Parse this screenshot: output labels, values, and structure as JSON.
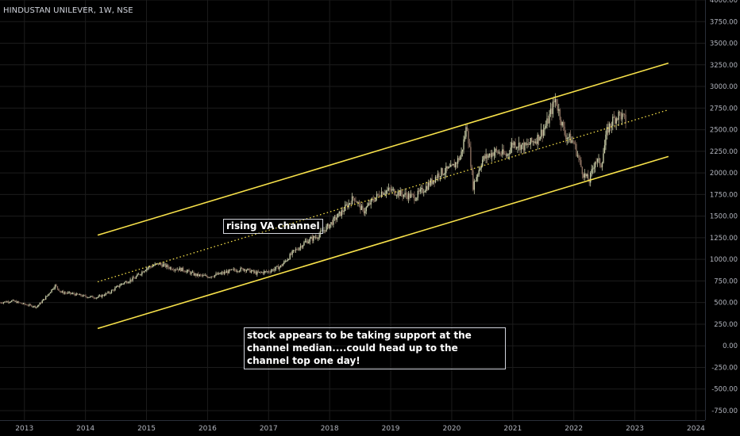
{
  "chart_title": "HINDUSTAN UNILEVER, 1W, NSE",
  "annotations": {
    "channel_label": "rising VA channel",
    "support_note": "stock appears to be taking support at the channel median....could head up to the channel top one day!"
  },
  "colors": {
    "background": "#000000",
    "channel_line": "#f7e14a",
    "median_line": "#f7e14a",
    "candle_up": "#c5c9a4",
    "candle_down": "#8b7060",
    "grid": "#1c1c1c",
    "axis_text": "#b2b5be"
  },
  "chart_data": {
    "type": "line",
    "title": "HINDUSTAN UNILEVER, 1W, NSE",
    "x_ticks": [
      "2013",
      "2014",
      "2015",
      "2016",
      "2017",
      "2018",
      "2019",
      "2020",
      "2021",
      "2022",
      "2023",
      "2024"
    ],
    "y_ticks": [
      "4000.00",
      "3750.00",
      "3500.00",
      "3250.00",
      "3000.00",
      "2750.00",
      "2500.00",
      "2250.00",
      "2000.00",
      "1750.00",
      "1500.00",
      "1250.00",
      "1000.00",
      "750.00",
      "500.00",
      "250.00",
      "0.00",
      "-250.00",
      "-500.00",
      "-750.00"
    ],
    "ylim": [
      -860,
      4000
    ],
    "xlim": [
      2012.6,
      2024.15
    ],
    "grid": true,
    "price_path": [
      [
        2012.6,
        500
      ],
      [
        2012.8,
        520
      ],
      [
        2013.0,
        480
      ],
      [
        2013.2,
        450
      ],
      [
        2013.35,
        560
      ],
      [
        2013.5,
        700
      ],
      [
        2013.6,
        620
      ],
      [
        2013.8,
        600
      ],
      [
        2014.0,
        570
      ],
      [
        2014.2,
        560
      ],
      [
        2014.4,
        620
      ],
      [
        2014.6,
        720
      ],
      [
        2014.8,
        780
      ],
      [
        2015.0,
        900
      ],
      [
        2015.2,
        950
      ],
      [
        2015.4,
        900
      ],
      [
        2015.6,
        880
      ],
      [
        2015.8,
        820
      ],
      [
        2016.0,
        800
      ],
      [
        2016.2,
        830
      ],
      [
        2016.4,
        870
      ],
      [
        2016.6,
        890
      ],
      [
        2016.8,
        840
      ],
      [
        2017.0,
        860
      ],
      [
        2017.2,
        920
      ],
      [
        2017.4,
        1080
      ],
      [
        2017.6,
        1200
      ],
      [
        2017.8,
        1270
      ],
      [
        2018.0,
        1400
      ],
      [
        2018.2,
        1550
      ],
      [
        2018.4,
        1720
      ],
      [
        2018.55,
        1550
      ],
      [
        2018.7,
        1680
      ],
      [
        2018.85,
        1780
      ],
      [
        2019.0,
        1800
      ],
      [
        2019.2,
        1750
      ],
      [
        2019.4,
        1720
      ],
      [
        2019.6,
        1850
      ],
      [
        2019.8,
        2000
      ],
      [
        2020.0,
        2050
      ],
      [
        2020.15,
        2200
      ],
      [
        2020.25,
        2560
      ],
      [
        2020.35,
        1850
      ],
      [
        2020.5,
        2150
      ],
      [
        2020.7,
        2250
      ],
      [
        2020.9,
        2200
      ],
      [
        2021.0,
        2350
      ],
      [
        2021.2,
        2300
      ],
      [
        2021.4,
        2400
      ],
      [
        2021.55,
        2550
      ],
      [
        2021.7,
        2860
      ],
      [
        2021.85,
        2450
      ],
      [
        2022.0,
        2350
      ],
      [
        2022.15,
        2000
      ],
      [
        2022.25,
        1900
      ],
      [
        2022.35,
        2150
      ],
      [
        2022.45,
        2100
      ],
      [
        2022.55,
        2500
      ],
      [
        2022.65,
        2620
      ],
      [
        2022.75,
        2680
      ],
      [
        2022.85,
        2600
      ]
    ],
    "channel_lines": [
      {
        "name": "upper",
        "style": "solid",
        "points": [
          [
            2014.2,
            1280
          ],
          [
            2023.55,
            3270
          ]
        ]
      },
      {
        "name": "median",
        "style": "dotted",
        "points": [
          [
            2014.2,
            740
          ],
          [
            2023.55,
            2730
          ]
        ]
      },
      {
        "name": "lower",
        "style": "solid",
        "points": [
          [
            2014.2,
            200
          ],
          [
            2023.55,
            2190
          ]
        ]
      }
    ]
  }
}
